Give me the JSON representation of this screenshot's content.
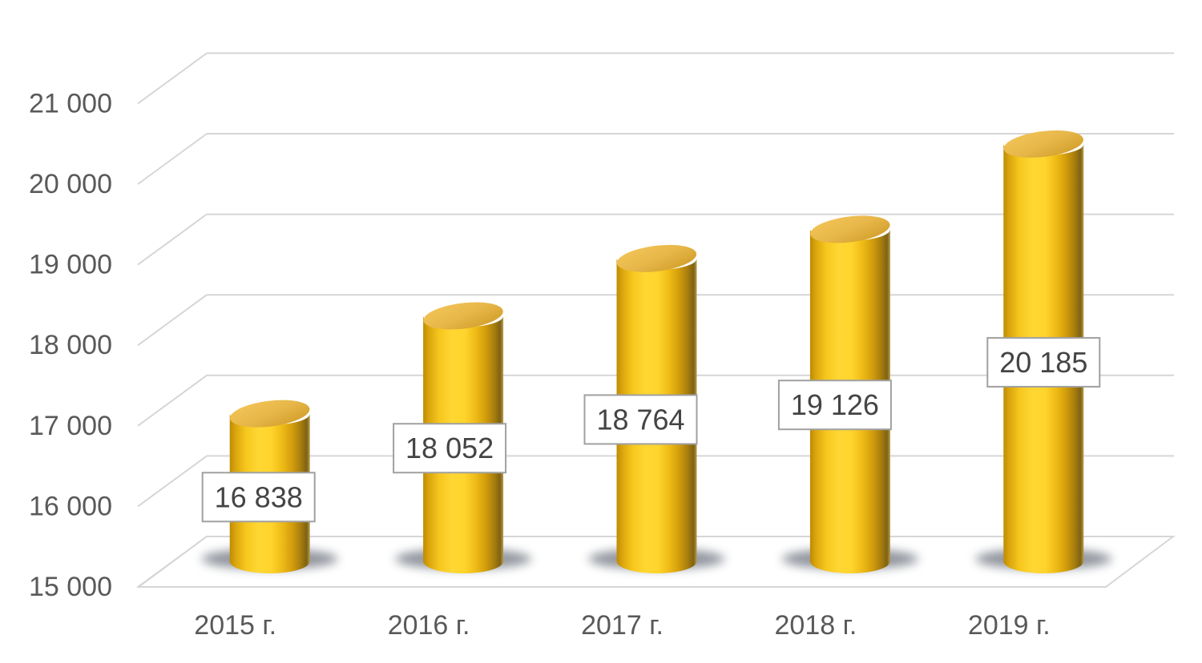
{
  "chart_data": {
    "type": "bar",
    "subtype": "3d-cylinder",
    "title": "",
    "categories": [
      "2015 г.",
      "2016 г.",
      "2017 г.",
      "2018 г.",
      "2019 г."
    ],
    "values": [
      16838,
      18052,
      18764,
      19126,
      20185
    ],
    "data_labels": [
      "16 838",
      "18 052",
      "18 764",
      "19 126",
      "20 185"
    ],
    "y_axis": {
      "min": 15000,
      "max": 21000,
      "step": 1000,
      "tick_values": [
        15000,
        16000,
        17000,
        18000,
        19000,
        20000,
        21000
      ],
      "tick_labels": [
        "15 000",
        "16 000",
        "17 000",
        "18 000",
        "19 000",
        "20 000",
        "21 000"
      ]
    },
    "grid": true,
    "legend": "none",
    "colors": {
      "cylinder_bright": "#FFD733",
      "cylinder_shade_left": "#BE8B05",
      "cylinder_shade_right": "#7E6213",
      "cylinder_top": "#E7B74A",
      "grid_line": "#D6D6D6",
      "axis_text": "#595959",
      "data_label_text": "#444444",
      "data_label_border": "#A0A0A0",
      "data_label_fill": "#FFFFFF",
      "shadow": "#39414F",
      "background": "#FFFFFF"
    }
  }
}
